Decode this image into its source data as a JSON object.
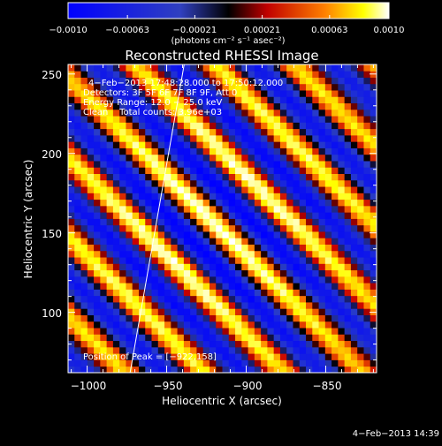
{
  "chart_data": {
    "type": "heatmap",
    "title": "Reconstructed RHESSI Image",
    "xlabel": "Heliocentric X (arcsec)",
    "ylabel": "Heliocentric Y (arcsec)",
    "xlim": [
      -1012,
      -818
    ],
    "ylim": [
      62,
      256
    ],
    "x_ticks": [
      -1000,
      -950,
      -900,
      -850
    ],
    "x_tick_labels": [
      "−1000",
      "−950",
      "−900",
      "−850"
    ],
    "y_ticks": [
      100,
      150,
      200,
      250
    ],
    "y_tick_labels": [
      "100",
      "150",
      "200",
      "250"
    ],
    "colorbar": {
      "range": [
        -0.001,
        0.001
      ],
      "ticks": [
        -0.001,
        -0.00063,
        -0.00021,
        0.00021,
        0.00063,
        0.001
      ],
      "tick_labels": [
        "−0.0010",
        "−0.00063",
        "−0.00021",
        "0.00021",
        "0.00063",
        "0.0010"
      ],
      "units": "(photons cm⁻² s⁻¹ asec⁻²)"
    },
    "annotations": [
      "4−Feb−2013 17:48:28.000 to 17:50:12.000",
      "Detectors: 3F 5F 6F 7F 8F 9F, Att 0",
      "Energy Range: 12.0 − 25.0 keV",
      "Clean    Total counts: 3.96e+03",
      "Position of Peak = [−922,158]"
    ],
    "peak": {
      "x": -922,
      "y": 158
    },
    "limb_line": {
      "x": [
        -973,
        -939
      ],
      "y": [
        62,
        256
      ]
    },
    "image_grid": {
      "n": 48,
      "x_range": [
        -1012,
        -818
      ],
      "y_range": [
        62,
        256
      ]
    },
    "stripe_pattern": {
      "direction_deg": 135,
      "period_arcsec": 35.4,
      "colormap": "blue-red-yellow-white"
    }
  },
  "footer": {
    "timestamp": "4−Feb−2013 14:39"
  }
}
